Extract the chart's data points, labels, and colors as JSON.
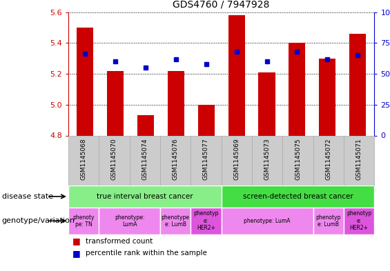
{
  "title": "GDS4760 / 7947928",
  "samples": [
    "GSM1145068",
    "GSM1145070",
    "GSM1145074",
    "GSM1145076",
    "GSM1145077",
    "GSM1145069",
    "GSM1145073",
    "GSM1145075",
    "GSM1145072",
    "GSM1145071"
  ],
  "transformed_count": [
    5.5,
    5.22,
    4.93,
    5.22,
    5.0,
    5.58,
    5.21,
    5.4,
    5.3,
    5.46
  ],
  "percentile_rank": [
    66,
    60,
    55,
    62,
    58,
    68,
    60,
    68,
    62,
    65
  ],
  "ylim": [
    4.8,
    5.6
  ],
  "y_ticks": [
    4.8,
    5.0,
    5.2,
    5.4,
    5.6
  ],
  "right_ylim": [
    0,
    100
  ],
  "right_yticks": [
    0,
    25,
    50,
    75,
    100
  ],
  "right_yticklabels": [
    "0",
    "25",
    "50",
    "75",
    "100%"
  ],
  "bar_color": "#cc0000",
  "dot_color": "#0000cc",
  "disease_state_labels": [
    {
      "text": "true interval breast cancer",
      "start": 0,
      "end": 4,
      "color": "#88ee88"
    },
    {
      "text": "screen-detected breast cancer",
      "start": 5,
      "end": 9,
      "color": "#44dd44"
    }
  ],
  "genotype_labels": [
    {
      "text": "phenoty\npe: TN",
      "start": 0,
      "end": 0,
      "color": "#ee88ee"
    },
    {
      "text": "phenotype:\nLumA",
      "start": 1,
      "end": 2,
      "color": "#ee88ee"
    },
    {
      "text": "phenotype\ne: LumB",
      "start": 3,
      "end": 3,
      "color": "#ee88ee"
    },
    {
      "text": "phenotyp\ne:\nHER2+",
      "start": 4,
      "end": 4,
      "color": "#dd55dd"
    },
    {
      "text": "phenotype: LumA",
      "start": 5,
      "end": 7,
      "color": "#ee88ee"
    },
    {
      "text": "phenotyp\ne: LumB",
      "start": 8,
      "end": 8,
      "color": "#ee88ee"
    },
    {
      "text": "phenotyp\ne:\nHER2+",
      "start": 9,
      "end": 9,
      "color": "#dd55dd"
    }
  ],
  "left_axis_color": "#cc0000",
  "right_axis_color": "#0000cc",
  "label_text_color": "#333333",
  "sample_bg_color": "#cccccc",
  "grid_color": "#000000",
  "cell_edge_color": "#aaaaaa"
}
